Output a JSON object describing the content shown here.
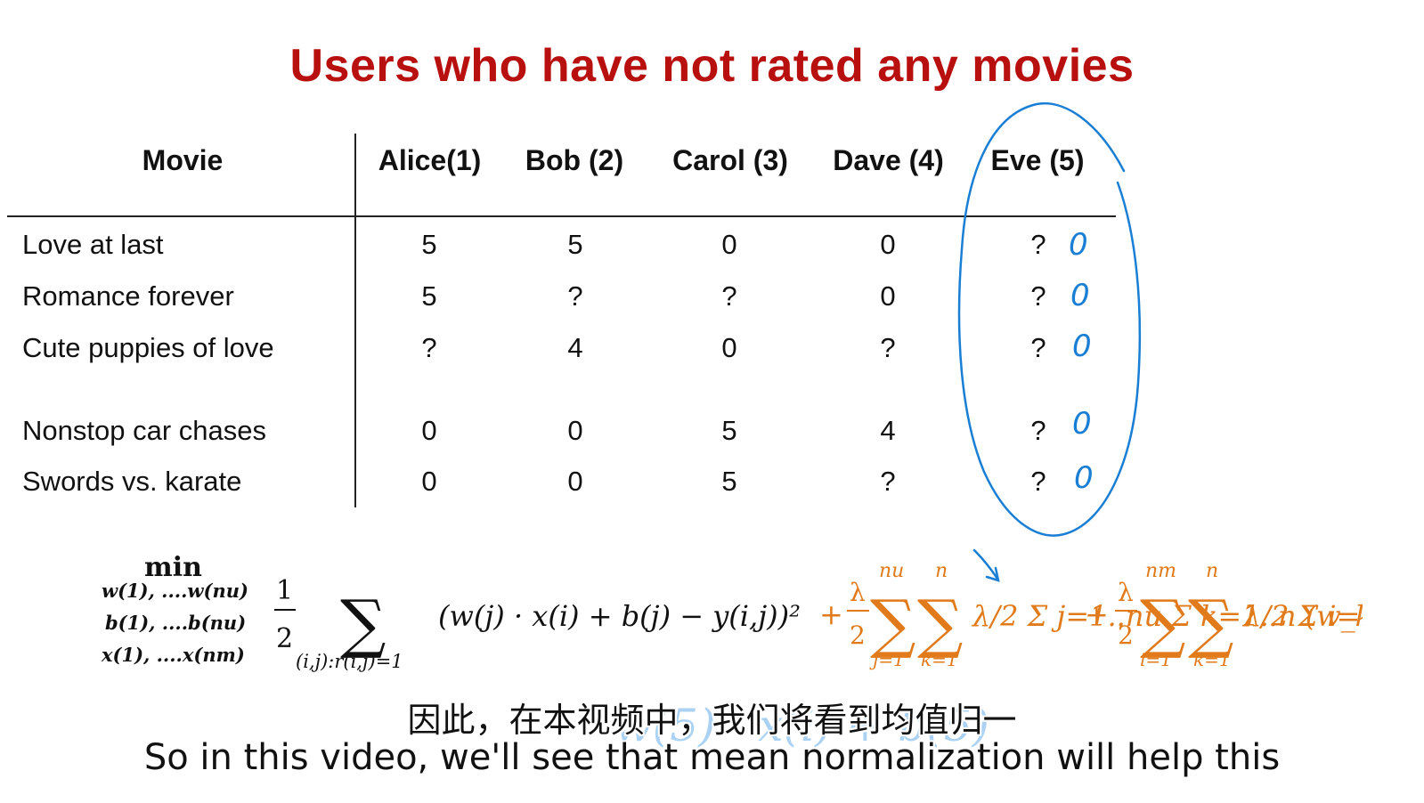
{
  "title": "Users who have not rated any movies",
  "table": {
    "movie_header": "Movie",
    "users": [
      "Alice(1)",
      "Bob (2)",
      "Carol (3)",
      "Dave (4)",
      "Eve (5)"
    ],
    "rows": [
      {
        "movie": "Love at last",
        "ratings": [
          "5",
          "5",
          "0",
          "0",
          "?"
        ],
        "annotation": "0"
      },
      {
        "movie": "Romance forever",
        "ratings": [
          "5",
          "?",
          "?",
          "0",
          "?"
        ],
        "annotation": "0"
      },
      {
        "movie": "Cute puppies of love",
        "ratings": [
          "?",
          "4",
          "0",
          "?",
          "?"
        ],
        "annotation": "0"
      },
      {
        "movie": "Nonstop car chases",
        "ratings": [
          "0",
          "0",
          "5",
          "4",
          "?"
        ],
        "annotation": "0"
      },
      {
        "movie": "Swords vs. karate",
        "ratings": [
          "0",
          "0",
          "5",
          "?",
          "?"
        ],
        "annotation": "0"
      }
    ]
  },
  "formula": {
    "min": "min",
    "vars": [
      "w(1), ....w(nu)",
      "b(1), ....b(nu)",
      "x(1), ....x(nm)"
    ],
    "cost_term": "(w(j) · x(i) + b(j) − y(i,j))²",
    "sum_index": "(i,j):r(i,j)=1",
    "reg_w": "λ/2 Σ j=1..nu Σ k=1..n (w_k(j))²",
    "reg_x": "λ/2 Σ i=1..nm Σ k=1..n (x_k(i))²"
  },
  "handwriting": "w(5) · x(i) + b(5)",
  "subtitles": {
    "chinese": "因此，在本视频中，我们将看到均值归一",
    "english": "So in this video, we'll see that mean normalization will help this"
  },
  "colors": {
    "title": "#b80f0f",
    "annotation": "#1a7fd4",
    "regularization": "#e07a1a"
  }
}
